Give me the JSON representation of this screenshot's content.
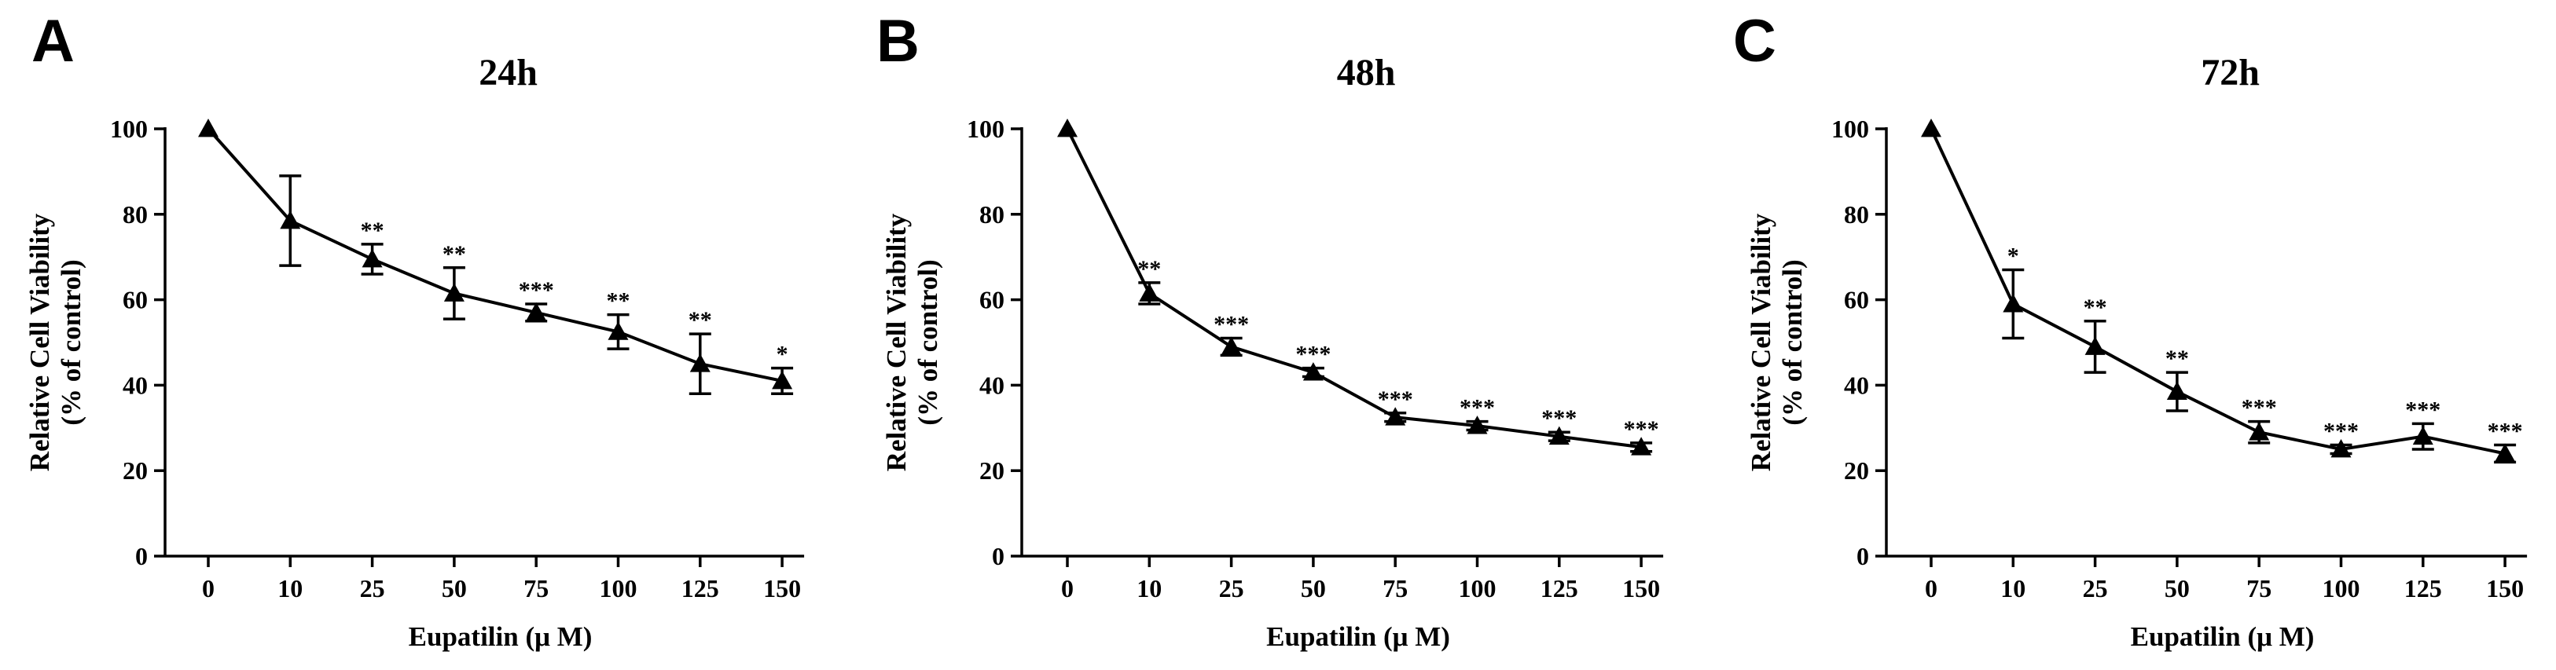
{
  "chart_data": [
    {
      "type": "line",
      "panel": "A",
      "title": "24h",
      "xlabel": "Eupatilin (μ M)",
      "ylabel_line1": "Relative Cell Viability",
      "ylabel_line2": "(% of control)",
      "categories": [
        "0",
        "10",
        "25",
        "50",
        "75",
        "100",
        "125",
        "150"
      ],
      "values": [
        100,
        78.5,
        69.5,
        61.5,
        57,
        52.5,
        45,
        41
      ],
      "errors": [
        0,
        10.5,
        3.5,
        6,
        2,
        4,
        7,
        3
      ],
      "significance": [
        "",
        "",
        "**",
        "**",
        "***",
        "**",
        "**",
        "*"
      ],
      "ylim": [
        0,
        100
      ],
      "yticks": [
        0,
        20,
        40,
        60,
        80,
        100
      ],
      "marker": "triangle",
      "grid": false
    },
    {
      "type": "line",
      "panel": "B",
      "title": "48h",
      "xlabel": "Eupatilin (μ M)",
      "ylabel_line1": "Relative Cell Viability",
      "ylabel_line2": "(% of control)",
      "categories": [
        "0",
        "10",
        "25",
        "50",
        "75",
        "100",
        "125",
        "150"
      ],
      "values": [
        100,
        61.5,
        49,
        43,
        32.5,
        30.5,
        28,
        25.5
      ],
      "errors": [
        0,
        2.5,
        2,
        1,
        1,
        1,
        1,
        1
      ],
      "significance": [
        "",
        "**",
        "***",
        "***",
        "***",
        "***",
        "***",
        "***"
      ],
      "ylim": [
        0,
        100
      ],
      "yticks": [
        0,
        20,
        40,
        60,
        80,
        100
      ],
      "marker": "triangle",
      "grid": false
    },
    {
      "type": "line",
      "panel": "C",
      "title": "72h",
      "xlabel": "Eupatilin (μ M)",
      "ylabel_line1": "Relative Cell Viability",
      "ylabel_line2": "(% of control)",
      "categories": [
        "0",
        "10",
        "25",
        "50",
        "75",
        "100",
        "125",
        "150"
      ],
      "values": [
        100,
        59,
        49,
        38.5,
        29,
        25,
        28,
        24
      ],
      "errors": [
        0,
        8,
        6,
        4.5,
        2.5,
        1,
        3,
        2
      ],
      "significance": [
        "",
        "*",
        "**",
        "**",
        "***",
        "***",
        "***",
        "***"
      ],
      "ylim": [
        0,
        100
      ],
      "yticks": [
        0,
        20,
        40,
        60,
        80,
        100
      ],
      "marker": "triangle",
      "grid": false
    }
  ]
}
